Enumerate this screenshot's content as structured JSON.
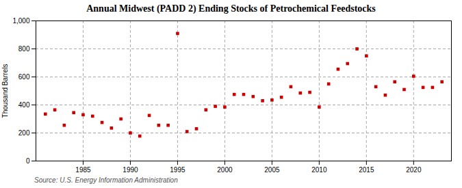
{
  "chart_data": {
    "type": "scatter",
    "title": "Annual Midwest (PADD 2) Ending Stocks of Petrochemical Feedstocks",
    "ylabel": "Thousand Barrels",
    "source": "Source: U.S. Energy Information Administration",
    "x": [
      1981,
      1982,
      1983,
      1984,
      1985,
      1986,
      1987,
      1988,
      1989,
      1990,
      1991,
      1992,
      1993,
      1994,
      1995,
      1996,
      1997,
      1998,
      1999,
      2000,
      2001,
      2002,
      2003,
      2004,
      2005,
      2006,
      2007,
      2008,
      2009,
      2010,
      2011,
      2012,
      2013,
      2014,
      2015,
      2016,
      2017,
      2018,
      2019,
      2020,
      2021,
      2022,
      2023
    ],
    "values": [
      335,
      365,
      255,
      345,
      330,
      320,
      275,
      235,
      300,
      200,
      178,
      325,
      255,
      255,
      910,
      210,
      230,
      365,
      390,
      385,
      475,
      475,
      460,
      430,
      435,
      455,
      530,
      485,
      490,
      385,
      550,
      655,
      695,
      800,
      750,
      530,
      470,
      565,
      510,
      605,
      525,
      525,
      565
    ],
    "color": "#cc0000",
    "marker": "square",
    "xlim": [
      1980,
      2024
    ],
    "xticks": [
      1985,
      1990,
      1995,
      2000,
      2005,
      2010,
      2015,
      2020
    ],
    "ylim": [
      0,
      1000
    ],
    "yticks": [
      0,
      200,
      400,
      600,
      800,
      {
        "value": 1000,
        "label": "1,000"
      }
    ],
    "grid": true
  }
}
